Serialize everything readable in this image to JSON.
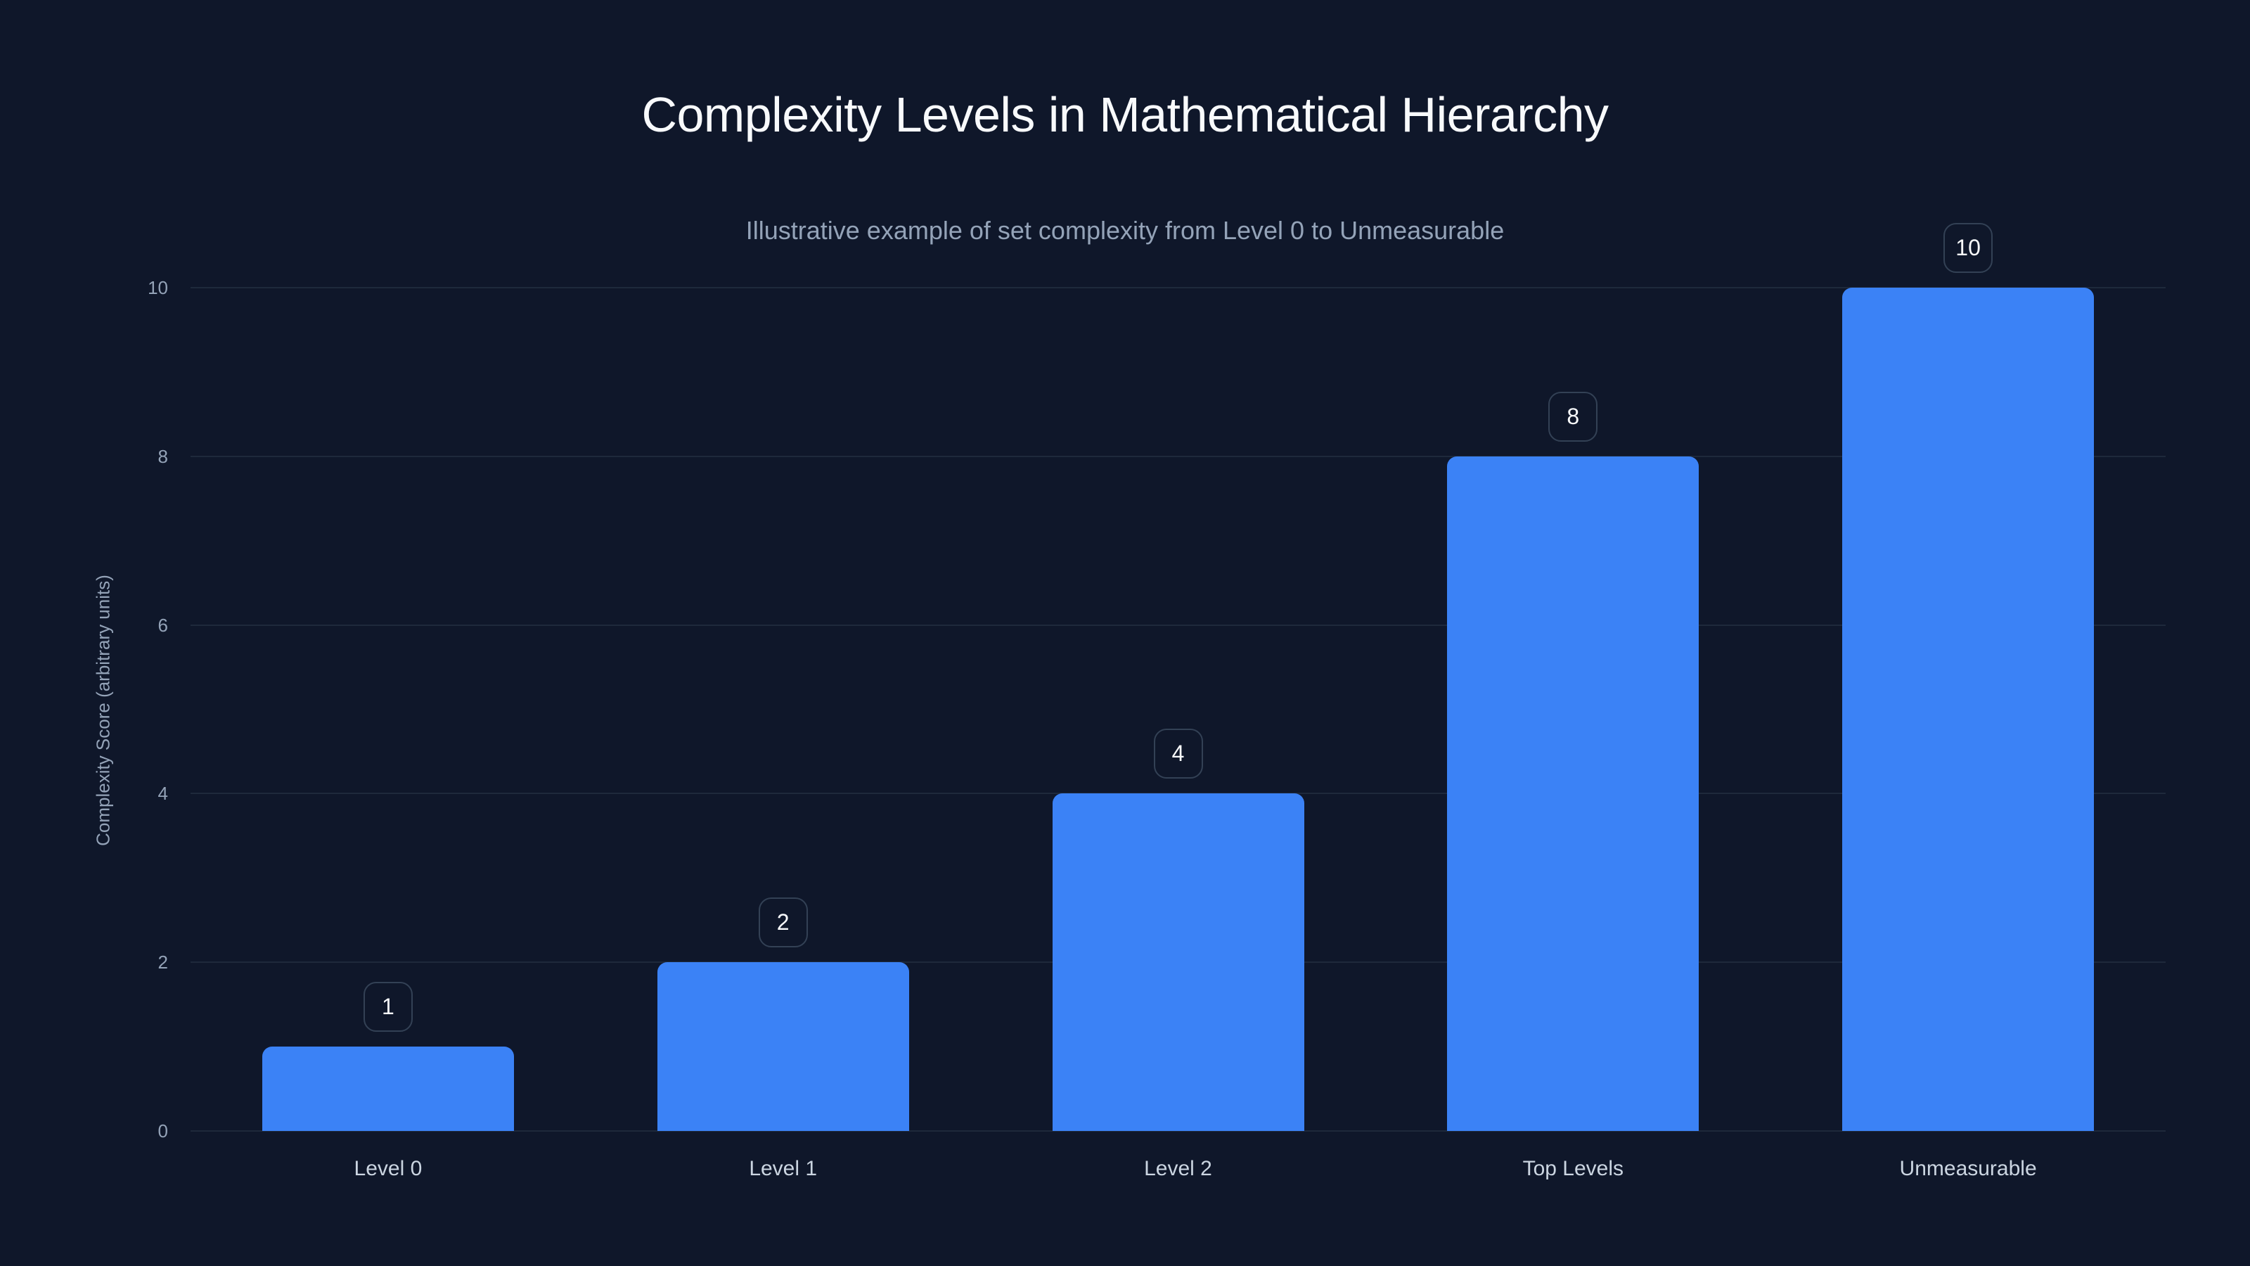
{
  "chart_title": "Complexity Levels in Mathematical Hierarchy",
  "chart_subtitle": "Illustrative example of set complexity from Level 0 to Unmeasurable",
  "colors": {
    "background": "#0f172a",
    "bar": "#3b82f6",
    "gridline": "#1e293b",
    "title": "#f8fafc",
    "subtitle": "#94a3b8",
    "tick_label": "#94a3b8",
    "category_label": "#cbd5e1",
    "value_label_border": "#334155"
  },
  "chart_data": {
    "type": "bar",
    "title": "Complexity Levels in Mathematical Hierarchy",
    "subtitle": "Illustrative example of set complexity from Level 0 to Unmeasurable",
    "categories": [
      "Level 0",
      "Level 1",
      "Level 2",
      "Top Levels",
      "Unmeasurable"
    ],
    "values": [
      1,
      2,
      4,
      8,
      10
    ],
    "data_labels": [
      "1",
      "2",
      "4",
      "8",
      "10"
    ],
    "xlabel": "",
    "ylabel": "Complexity Score (arbitrary units)",
    "ylim": [
      0,
      10
    ],
    "yticks": [
      0,
      2,
      4,
      6,
      8,
      10
    ],
    "grid": true,
    "legend": null
  }
}
